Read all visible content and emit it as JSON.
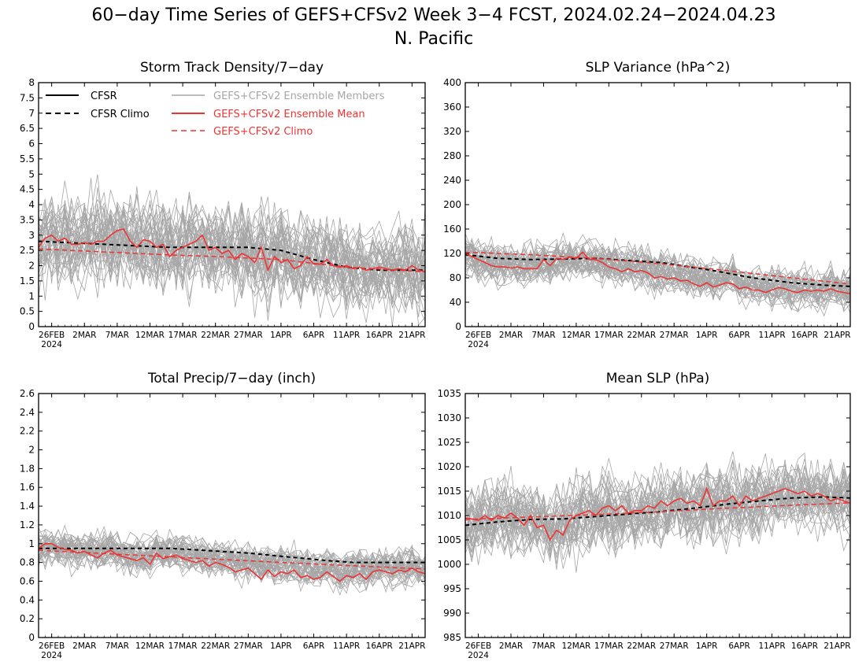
{
  "figure": {
    "title_line1": "60−day Time Series of GEFS+CFSv2 Week 3−4 FCST, 2024.02.24−2024.04.23",
    "title_line2": "N. Pacific"
  },
  "colors": {
    "cfsr": "#000000",
    "members": "#a6a6a6",
    "ensemble_mean": "#ee3333",
    "gefs_climo": "#ee3333",
    "axes": "#000000"
  },
  "legend": {
    "cfsr": "CFSR",
    "cfsr_climo": "CFSR Climo",
    "members": "GEFS+CFSv2 Ensemble Members",
    "mean": "GEFS+CFSv2 Ensemble Mean",
    "gefs_climo": "GEFS+CFSv2 Climo",
    "placement": "top, inside Storm Track Density panel"
  },
  "x_axis": {
    "tick_labels": [
      "26FEB",
      "2MAR",
      "7MAR",
      "12MAR",
      "17MAR",
      "22MAR",
      "27MAR",
      "1APR",
      "6APR",
      "11APR",
      "16APR",
      "21APR"
    ],
    "year_label": "2024",
    "tick_days_from_feb24": [
      2,
      7,
      12,
      17,
      22,
      27,
      32,
      37,
      42,
      47,
      52,
      57
    ],
    "xlim_days": [
      0,
      59
    ]
  },
  "chart_data": [
    {
      "type": "line",
      "title": "Storm Track Density/7−day",
      "ylim": [
        0,
        8
      ],
      "yticks": [
        "0",
        "0.5",
        "1",
        "1.5",
        "2",
        "2.5",
        "3",
        "3.5",
        "4",
        "4.5",
        "5",
        "5.5",
        "6",
        "6.5",
        "7",
        "7.5",
        "8"
      ],
      "grid": false,
      "member_count": 40,
      "member_spread": 1.0,
      "series": [
        {
          "name": "CFSR Climo",
          "style": "dashed-black",
          "x_days": [
            0,
            10,
            20,
            27,
            32,
            37,
            42,
            47,
            52,
            59
          ],
          "values": [
            2.8,
            2.7,
            2.6,
            2.6,
            2.6,
            2.5,
            2.2,
            1.95,
            1.85,
            1.85
          ]
        },
        {
          "name": "GEFS+CFSv2 Climo",
          "style": "dashed-red",
          "x_days": [
            0,
            10,
            20,
            27,
            37,
            47,
            59
          ],
          "values": [
            2.55,
            2.45,
            2.35,
            2.3,
            2.2,
            1.95,
            1.8
          ]
        },
        {
          "name": "GEFS+CFSv2 Ensemble Mean",
          "style": "solid-red",
          "x_days": [
            0,
            1,
            2,
            3,
            4,
            5,
            6,
            7,
            8,
            9,
            10,
            11,
            12,
            13,
            14,
            15,
            16,
            17,
            18,
            19,
            20,
            21,
            22,
            23,
            24,
            25,
            26,
            27,
            28,
            29,
            30,
            31,
            32,
            33,
            34,
            35,
            36,
            37,
            38,
            39,
            40,
            41,
            42,
            43,
            44,
            45,
            46,
            47,
            48,
            49,
            50,
            51,
            52,
            53,
            54,
            55,
            56,
            57,
            58,
            59
          ],
          "values": [
            2.6,
            2.9,
            3.0,
            2.8,
            2.9,
            2.7,
            2.7,
            2.75,
            2.7,
            2.8,
            2.8,
            3.0,
            3.15,
            3.2,
            2.8,
            2.6,
            2.85,
            2.8,
            2.6,
            2.7,
            2.3,
            2.5,
            2.6,
            2.7,
            2.8,
            3.0,
            2.5,
            2.6,
            2.4,
            2.5,
            2.2,
            2.4,
            2.3,
            2.1,
            2.6,
            1.85,
            2.3,
            2.1,
            2.2,
            1.9,
            2.0,
            2.3,
            2.05,
            2.05,
            2.2,
            2.0,
            1.95,
            2.0,
            1.9,
            1.95,
            1.85,
            1.9,
            1.95,
            1.9,
            1.85,
            1.9,
            1.85,
            2.0,
            1.85,
            1.8
          ]
        }
      ]
    },
    {
      "type": "line",
      "title": "SLP Variance (hPa^2)",
      "ylim": [
        0,
        400
      ],
      "yticks": [
        "0",
        "40",
        "80",
        "120",
        "160",
        "200",
        "240",
        "280",
        "320",
        "360",
        "400"
      ],
      "grid": false,
      "member_count": 40,
      "member_spread": 22,
      "series": [
        {
          "name": "CFSR Climo",
          "style": "dashed-black",
          "x_days": [
            0,
            5,
            10,
            20,
            30,
            38,
            44,
            50,
            55,
            59
          ],
          "values": [
            118,
            112,
            110,
            112,
            105,
            92,
            80,
            72,
            68,
            66
          ]
        },
        {
          "name": "GEFS+CFSv2 Climo",
          "style": "dashed-red",
          "x_days": [
            0,
            10,
            20,
            30,
            40,
            50,
            59
          ],
          "values": [
            122,
            118,
            112,
            103,
            92,
            80,
            70
          ]
        },
        {
          "name": "GEFS+CFSv2 Ensemble Mean",
          "style": "solid-red",
          "x_days": [
            0,
            1,
            2,
            3,
            4,
            5,
            6,
            7,
            8,
            9,
            10,
            11,
            12,
            13,
            14,
            15,
            16,
            17,
            18,
            19,
            20,
            21,
            22,
            23,
            24,
            25,
            26,
            27,
            28,
            29,
            30,
            31,
            32,
            33,
            34,
            35,
            36,
            37,
            38,
            39,
            40,
            41,
            42,
            43,
            44,
            45,
            46,
            47,
            48,
            49,
            50,
            51,
            52,
            53,
            54,
            55,
            56,
            57,
            58,
            59
          ],
          "values": [
            120,
            115,
            110,
            105,
            100,
            98,
            98,
            96,
            98,
            95,
            95,
            95,
            110,
            100,
            112,
            110,
            114,
            112,
            122,
            110,
            110,
            105,
            98,
            95,
            90,
            95,
            90,
            92,
            88,
            80,
            82,
            78,
            80,
            75,
            76,
            70,
            66,
            72,
            65,
            68,
            72,
            70,
            62,
            65,
            60,
            60,
            56,
            60,
            64,
            62,
            58,
            56,
            60,
            58,
            60,
            58,
            62,
            58,
            56,
            54
          ]
        }
      ]
    },
    {
      "type": "line",
      "title": "Total Precip/7−day (inch)",
      "ylim": [
        0,
        2.6
      ],
      "yticks": [
        "0",
        "0.2",
        "0.4",
        "0.6",
        "0.8",
        "1",
        "1.2",
        "1.4",
        "1.6",
        "1.8",
        "2",
        "2.2",
        "2.4",
        "2.6"
      ],
      "grid": false,
      "member_count": 40,
      "member_spread": 0.13,
      "series": [
        {
          "name": "CFSR Climo",
          "style": "dashed-black",
          "x_days": [
            0,
            10,
            20,
            25,
            32,
            38,
            44,
            48,
            59
          ],
          "values": [
            0.95,
            0.95,
            0.95,
            0.93,
            0.9,
            0.86,
            0.82,
            0.8,
            0.8
          ]
        },
        {
          "name": "GEFS+CFSv2 Climo",
          "style": "dashed-red",
          "x_days": [
            0,
            20,
            40,
            59
          ],
          "values": [
            0.93,
            0.86,
            0.79,
            0.73
          ]
        },
        {
          "name": "GEFS+CFSv2 Ensemble Mean",
          "style": "solid-red",
          "x_days": [
            0,
            1,
            2,
            3,
            4,
            5,
            6,
            7,
            8,
            9,
            10,
            11,
            12,
            13,
            14,
            15,
            16,
            17,
            18,
            19,
            20,
            21,
            22,
            23,
            24,
            25,
            26,
            27,
            28,
            29,
            30,
            31,
            32,
            33,
            34,
            35,
            36,
            37,
            38,
            39,
            40,
            41,
            42,
            43,
            44,
            45,
            46,
            47,
            48,
            49,
            50,
            51,
            52,
            53,
            54,
            55,
            56,
            57,
            58,
            59
          ],
          "values": [
            0.95,
            1.0,
            1.0,
            0.96,
            0.94,
            0.93,
            0.9,
            0.92,
            0.88,
            0.85,
            0.9,
            0.93,
            0.88,
            0.86,
            0.84,
            0.82,
            0.85,
            0.78,
            0.9,
            0.84,
            0.86,
            0.88,
            0.84,
            0.82,
            0.8,
            0.82,
            0.76,
            0.8,
            0.78,
            0.75,
            0.7,
            0.72,
            0.74,
            0.68,
            0.62,
            0.72,
            0.65,
            0.7,
            0.68,
            0.72,
            0.64,
            0.66,
            0.62,
            0.64,
            0.7,
            0.65,
            0.6,
            0.66,
            0.64,
            0.68,
            0.62,
            0.7,
            0.72,
            0.7,
            0.68,
            0.72,
            0.7,
            0.74,
            0.7,
            0.68
          ]
        }
      ]
    },
    {
      "type": "line",
      "title": "Mean SLP (hPa)",
      "ylim": [
        985,
        1035
      ],
      "yticks": [
        "985",
        "990",
        "995",
        "1000",
        "1005",
        "1010",
        "1015",
        "1020",
        "1025",
        "1030",
        "1035"
      ],
      "grid": false,
      "member_count": 40,
      "member_spread": 5,
      "series": [
        {
          "name": "CFSR Climo",
          "style": "dashed-black",
          "x_days": [
            0,
            5,
            10,
            15,
            20,
            25,
            30,
            35,
            40,
            45,
            50,
            55,
            59
          ],
          "values": [
            1008,
            1008.7,
            1009.2,
            1009.3,
            1009.8,
            1010.3,
            1010.8,
            1011.5,
            1012.3,
            1013,
            1013.6,
            1013.8,
            1013.6
          ]
        },
        {
          "name": "GEFS+CFSv2 Climo",
          "style": "dashed-red",
          "x_days": [
            0,
            10,
            20,
            30,
            40,
            50,
            59
          ],
          "values": [
            1009.2,
            1009.7,
            1010.2,
            1010.8,
            1011.5,
            1012.1,
            1012.6
          ]
        },
        {
          "name": "GEFS+CFSv2 Ensemble Mean",
          "style": "solid-red",
          "x_days": [
            0,
            1,
            2,
            3,
            4,
            5,
            6,
            7,
            8,
            9,
            10,
            11,
            12,
            13,
            14,
            15,
            16,
            17,
            18,
            19,
            20,
            21,
            22,
            23,
            24,
            25,
            26,
            27,
            28,
            29,
            30,
            31,
            32,
            33,
            34,
            35,
            36,
            37,
            38,
            39,
            40,
            41,
            42,
            43,
            44,
            45,
            46,
            47,
            48,
            49,
            50,
            51,
            52,
            53,
            54,
            55,
            56,
            57,
            58,
            59
          ],
          "values": [
            1009.5,
            1009.3,
            1009,
            1010,
            1009,
            1010,
            1009.5,
            1010.5,
            1009.5,
            1008,
            1010,
            1007.5,
            1008,
            1005,
            1007,
            1006,
            1009,
            1010,
            1010.5,
            1011,
            1010,
            1011.5,
            1012,
            1011,
            1012,
            1010.5,
            1011,
            1011,
            1012,
            1011.5,
            1013,
            1012,
            1013,
            1013.5,
            1012.5,
            1013,
            1012,
            1015.5,
            1012,
            1013,
            1013,
            1014,
            1012,
            1014,
            1013,
            1013.5,
            1014,
            1014.5,
            1015,
            1015.5,
            1015,
            1014.5,
            1015,
            1014,
            1014.5,
            1014,
            1013,
            1013.5,
            1013,
            1012.5
          ]
        }
      ]
    }
  ]
}
